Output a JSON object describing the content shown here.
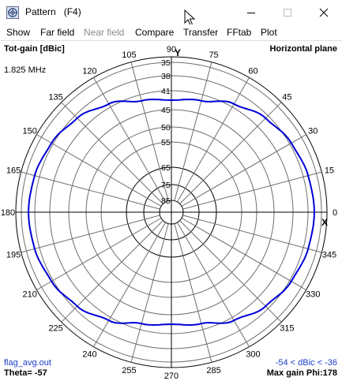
{
  "window": {
    "title": "Pattern   (F4)",
    "controls": {
      "minimize": "minimize-icon",
      "maximize": "maximize-icon",
      "close": "close-icon"
    }
  },
  "menu": [
    {
      "label": "Show",
      "enabled": true
    },
    {
      "label": "Far field",
      "enabled": true
    },
    {
      "label": "Near field",
      "enabled": false
    },
    {
      "label": "Compare",
      "enabled": true
    },
    {
      "label": "Transfer",
      "enabled": true
    },
    {
      "label": "FFtab",
      "enabled": true
    },
    {
      "label": "Plot",
      "enabled": true
    }
  ],
  "plot": {
    "corner_top_left": "Tot-gain [dBic]",
    "corner_top_right": "Horizontal plane",
    "frequency": "1.825 MHz",
    "axis_y": "Y",
    "axis_x": "X",
    "file": "flag_avg.out",
    "range": "-54 < dBic < -36",
    "theta": "Theta= -57",
    "max_gain": "Max gain Phi:178",
    "trace_color": "#0000d8",
    "angle_labels": [
      "0",
      "15",
      "30",
      "45",
      "60",
      "75",
      "90",
      "105",
      "120",
      "135",
      "150",
      "165",
      "180",
      "195",
      "210",
      "225",
      "240",
      "255",
      "270",
      "285",
      "300",
      "315",
      "330",
      "345"
    ],
    "ring_labels": [
      "35",
      "38",
      "41",
      "45",
      "50",
      "55",
      "65",
      "75",
      "85"
    ]
  },
  "chart_data": {
    "type": "polar",
    "title": "Tot-gain [dBic]",
    "subtitle": "Horizontal plane",
    "angle_unit": "degrees",
    "radial_unit": "dBic",
    "radial_ticks_neg_dBic": [
      35,
      38,
      41,
      45,
      50,
      55,
      65,
      75,
      85
    ],
    "max_dBic": -36,
    "min_dBic": -54,
    "max_gain_phi": 178,
    "series": [
      {
        "phi": [
          0,
          15,
          30,
          45,
          60,
          75,
          90,
          105,
          120,
          135,
          150,
          165,
          180,
          195,
          210,
          225,
          240,
          255,
          270,
          285,
          300,
          315,
          330,
          345
        ],
        "dBic": [
          -36.6,
          -36.9,
          -37.6,
          -38.7,
          -40.3,
          -42.3,
          -43.0,
          -42.3,
          -40.3,
          -38.7,
          -37.6,
          -36.9,
          -36.6,
          -36.9,
          -37.6,
          -38.7,
          -40.3,
          -42.3,
          -43.0,
          -42.3,
          -40.3,
          -38.7,
          -37.6,
          -36.9
        ]
      }
    ]
  }
}
